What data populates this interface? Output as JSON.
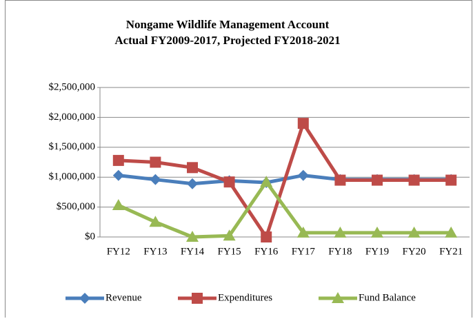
{
  "chart_data": {
    "type": "line",
    "title": [
      "Nongame Wildlife Management Account",
      "Actual FY2009-2017, Projected FY2018-2021"
    ],
    "categories": [
      "FY12",
      "FY13",
      "FY14",
      "FY15",
      "FY16",
      "FY17",
      "FY18",
      "FY19",
      "FY20",
      "FY21"
    ],
    "series": [
      {
        "name": "Revenue",
        "color": "#4a7ebb",
        "marker": "diamond",
        "values": [
          1030000,
          960000,
          890000,
          940000,
          910000,
          1030000,
          960000,
          960000,
          960000,
          960000
        ]
      },
      {
        "name": "Expenditures",
        "color": "#be4b48",
        "marker": "square",
        "values": [
          1280000,
          1250000,
          1160000,
          920000,
          0,
          1900000,
          950000,
          950000,
          950000,
          950000
        ]
      },
      {
        "name": "Fund Balance",
        "color": "#98b954",
        "marker": "triangle",
        "values": [
          530000,
          250000,
          0,
          20000,
          920000,
          70000,
          70000,
          70000,
          70000,
          70000
        ]
      }
    ],
    "ylim": [
      0,
      2500000
    ],
    "yticks": [
      {
        "value": 0,
        "label": "$0"
      },
      {
        "value": 500000,
        "label": "$500,000"
      },
      {
        "value": 1000000,
        "label": "$1,000,000"
      },
      {
        "value": 1500000,
        "label": "$1,500,000"
      },
      {
        "value": 2000000,
        "label": "$2,000,000"
      },
      {
        "value": 2500000,
        "label": "$2,500,000"
      }
    ],
    "grid": true,
    "legend": "bottom"
  }
}
